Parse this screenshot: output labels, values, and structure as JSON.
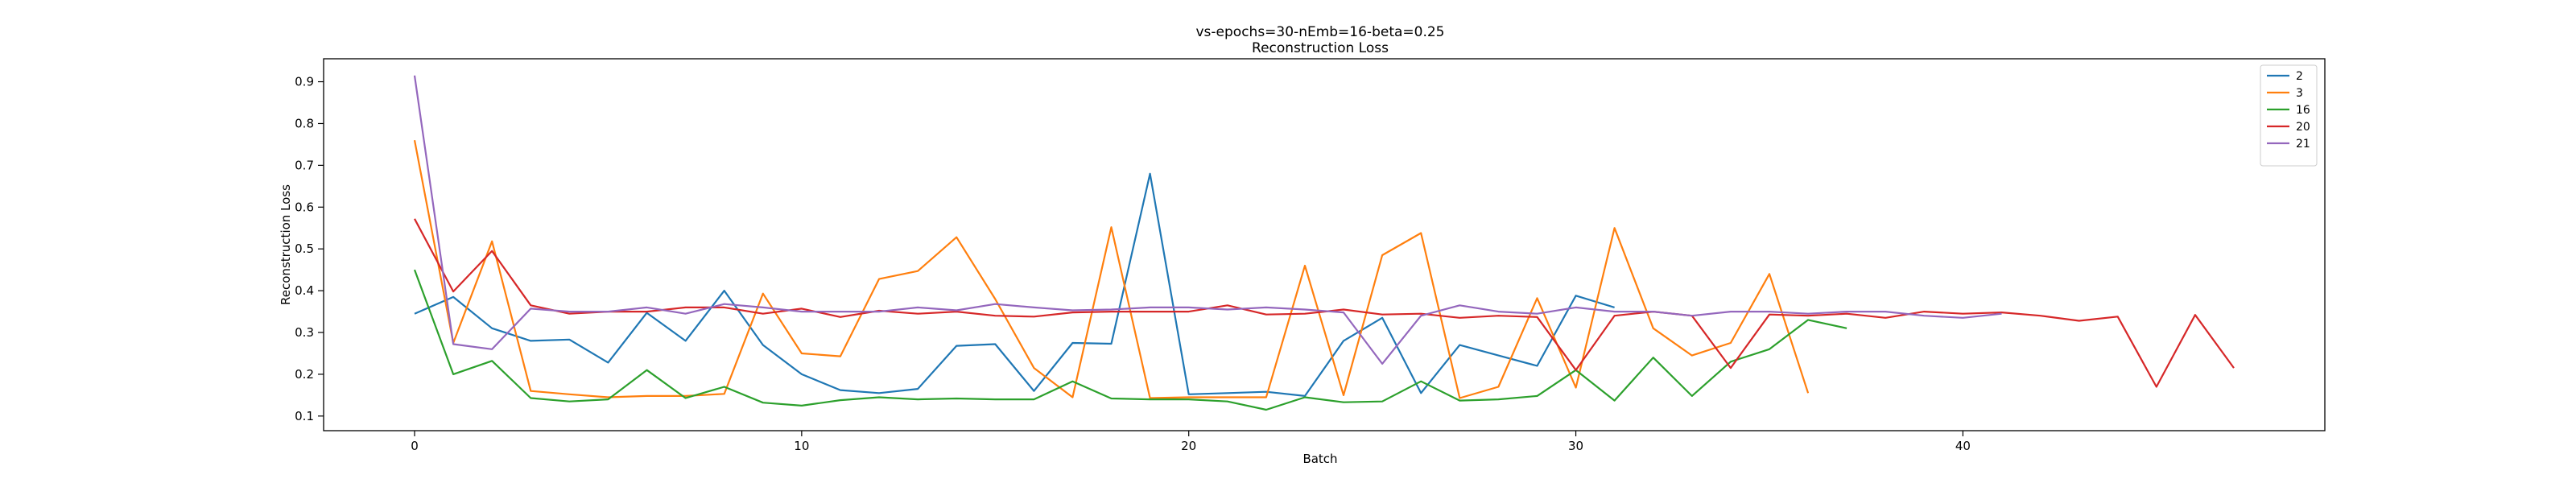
{
  "chart_data": {
    "type": "line",
    "title": "vs-epochs=30-nEmb=16-beta=0.25",
    "subtitle": "Reconstruction Loss",
    "xlabel": "Batch",
    "ylabel": "Reconstruction Loss",
    "xlim": [
      -2.35,
      49.35
    ],
    "ylim": [
      0.065,
      0.955
    ],
    "xticks": [
      0,
      10,
      20,
      30,
      40
    ],
    "yticks": [
      0.1,
      0.2,
      0.3,
      0.4,
      0.5,
      0.6,
      0.7,
      0.8,
      0.9
    ],
    "grid": false,
    "legend_position": "top-right",
    "series": [
      {
        "name": "2",
        "color": "#1f77b4",
        "x": [
          0,
          1,
          2,
          3,
          4,
          5,
          6,
          7,
          8,
          9,
          10,
          11,
          12,
          13,
          14,
          15,
          16,
          17,
          18,
          19,
          20,
          21,
          22,
          23,
          24,
          25,
          26,
          27,
          28,
          29,
          30,
          31
        ],
        "y": [
          0.345,
          0.385,
          0.31,
          0.28,
          0.283,
          0.228,
          0.347,
          0.28,
          0.4,
          0.27,
          0.2,
          0.162,
          0.155,
          0.165,
          0.268,
          0.272,
          0.16,
          0.275,
          0.273,
          0.68,
          0.152,
          0.155,
          0.158,
          0.148,
          0.28,
          0.335,
          0.155,
          0.27,
          0.245,
          0.22,
          0.388,
          0.36
        ]
      },
      {
        "name": "3",
        "color": "#ff7f0e",
        "x": [
          0,
          1,
          2,
          3,
          4,
          5,
          6,
          7,
          8,
          9,
          10,
          11,
          12,
          13,
          14,
          15,
          16,
          17,
          18,
          19,
          20,
          21,
          22,
          23,
          24,
          25,
          26,
          27,
          28,
          29,
          30,
          31,
          32,
          33,
          34,
          35,
          36
        ],
        "y": [
          0.76,
          0.275,
          0.518,
          0.16,
          0.152,
          0.145,
          0.148,
          0.148,
          0.153,
          0.393,
          0.25,
          0.243,
          0.428,
          0.447,
          0.528,
          0.38,
          0.215,
          0.145,
          0.552,
          0.143,
          0.145,
          0.145,
          0.145,
          0.46,
          0.15,
          0.485,
          0.538,
          0.143,
          0.17,
          0.382,
          0.168,
          0.55,
          0.31,
          0.245,
          0.275,
          0.44,
          0.155
        ]
      },
      {
        "name": "16",
        "color": "#2ca02c",
        "x": [
          0,
          1,
          2,
          3,
          4,
          5,
          6,
          7,
          8,
          9,
          10,
          11,
          12,
          13,
          14,
          15,
          16,
          17,
          18,
          19,
          20,
          21,
          22,
          23,
          24,
          25,
          26,
          27,
          28,
          29,
          30,
          31,
          32,
          33,
          34,
          35,
          36,
          37
        ],
        "y": [
          0.45,
          0.2,
          0.232,
          0.143,
          0.135,
          0.14,
          0.21,
          0.143,
          0.17,
          0.132,
          0.125,
          0.138,
          0.145,
          0.14,
          0.142,
          0.14,
          0.14,
          0.183,
          0.142,
          0.14,
          0.14,
          0.135,
          0.115,
          0.145,
          0.133,
          0.135,
          0.183,
          0.137,
          0.14,
          0.148,
          0.21,
          0.137,
          0.24,
          0.148,
          0.23,
          0.26,
          0.33,
          0.31
        ]
      },
      {
        "name": "20",
        "color": "#d62728",
        "x": [
          0,
          1,
          2,
          3,
          4,
          5,
          6,
          7,
          8,
          9,
          10,
          11,
          12,
          13,
          14,
          15,
          16,
          17,
          18,
          19,
          20,
          21,
          22,
          23,
          24,
          25,
          26,
          27,
          28,
          29,
          30,
          31,
          32,
          33,
          34,
          35,
          36,
          37,
          38,
          39,
          40,
          41,
          42,
          43,
          44,
          45,
          46,
          47
        ],
        "y": [
          0.572,
          0.398,
          0.495,
          0.365,
          0.345,
          0.35,
          0.35,
          0.36,
          0.36,
          0.345,
          0.357,
          0.337,
          0.352,
          0.345,
          0.35,
          0.34,
          0.338,
          0.348,
          0.35,
          0.35,
          0.35,
          0.365,
          0.343,
          0.345,
          0.355,
          0.343,
          0.345,
          0.335,
          0.34,
          0.337,
          0.21,
          0.34,
          0.35,
          0.34,
          0.215,
          0.343,
          0.34,
          0.345,
          0.335,
          0.35,
          0.345,
          0.348,
          0.34,
          0.328,
          0.338,
          0.17,
          0.342,
          0.215
        ]
      },
      {
        "name": "21",
        "color": "#9467bd",
        "x": [
          0,
          1,
          2,
          3,
          4,
          5,
          6,
          7,
          8,
          9,
          10,
          11,
          12,
          13,
          14,
          15,
          16,
          17,
          18,
          19,
          20,
          21,
          22,
          23,
          24,
          25,
          26,
          27,
          28,
          29,
          30,
          31,
          32,
          33,
          34,
          35,
          36,
          37,
          38,
          39,
          40,
          41
        ],
        "y": [
          0.915,
          0.272,
          0.26,
          0.357,
          0.35,
          0.35,
          0.36,
          0.345,
          0.368,
          0.36,
          0.35,
          0.35,
          0.35,
          0.36,
          0.353,
          0.368,
          0.36,
          0.353,
          0.355,
          0.36,
          0.36,
          0.355,
          0.36,
          0.355,
          0.348,
          0.225,
          0.34,
          0.365,
          0.35,
          0.345,
          0.36,
          0.35,
          0.35,
          0.34,
          0.35,
          0.35,
          0.345,
          0.35,
          0.35,
          0.34,
          0.335,
          0.345
        ]
      }
    ]
  }
}
